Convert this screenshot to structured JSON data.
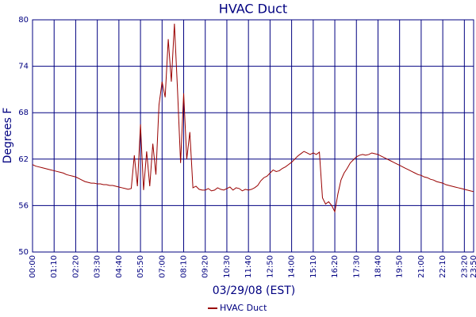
{
  "chart_data": {
    "type": "line",
    "title": "HVAC Duct",
    "xlabel": "03/29/08 (EST)",
    "ylabel": "Degrees F",
    "categories": [
      "00:00",
      null,
      null,
      null,
      null,
      null,
      null,
      "01:10",
      null,
      null,
      null,
      null,
      null,
      null,
      "02:20",
      null,
      null,
      null,
      null,
      null,
      null,
      "03:30",
      null,
      null,
      null,
      null,
      null,
      null,
      "04:40",
      null,
      null,
      null,
      null,
      null,
      null,
      "05:50",
      null,
      null,
      null,
      null,
      null,
      null,
      "07:00",
      null,
      null,
      null,
      null,
      null,
      null,
      "08:10",
      null,
      null,
      null,
      null,
      null,
      null,
      "09:20",
      null,
      null,
      null,
      null,
      null,
      null,
      "10:30",
      null,
      null,
      null,
      null,
      null,
      null,
      "11:40",
      null,
      null,
      null,
      null,
      null,
      null,
      "12:50",
      null,
      null,
      null,
      null,
      null,
      null,
      "14:00",
      null,
      null,
      null,
      null,
      null,
      null,
      "15:10",
      null,
      null,
      null,
      null,
      null,
      null,
      "16:20",
      null,
      null,
      null,
      null,
      null,
      null,
      "17:30",
      null,
      null,
      null,
      null,
      null,
      null,
      "18:40",
      null,
      null,
      null,
      null,
      null,
      null,
      "19:50",
      null,
      null,
      null,
      null,
      null,
      null,
      "21:00",
      null,
      null,
      null,
      null,
      null,
      null,
      "22:10",
      null,
      null,
      null,
      null,
      null,
      null,
      "23:20",
      null,
      null,
      "23:50"
    ],
    "series": [
      {
        "name": "HVAC Duct",
        "color": "#990000",
        "values": [
          61.3,
          61.1,
          61.0,
          60.9,
          60.8,
          60.7,
          60.6,
          60.5,
          60.4,
          60.3,
          60.2,
          60.0,
          59.9,
          59.8,
          59.7,
          59.5,
          59.3,
          59.1,
          59.0,
          58.9,
          58.9,
          58.8,
          58.8,
          58.7,
          58.7,
          58.6,
          58.6,
          58.5,
          58.4,
          58.3,
          58.2,
          58.1,
          58.2,
          62.5,
          58.5,
          66.5,
          58.0,
          63.0,
          58.5,
          64.0,
          60.0,
          69.0,
          72.0,
          70.0,
          77.5,
          72.0,
          79.5,
          71.0,
          61.5,
          70.5,
          62.0,
          65.5,
          58.3,
          58.5,
          58.1,
          58.0,
          58.0,
          58.2,
          57.9,
          58.0,
          58.3,
          58.1,
          58.0,
          58.2,
          58.4,
          58.0,
          58.3,
          58.2,
          57.9,
          58.1,
          58.0,
          58.1,
          58.3,
          58.6,
          59.2,
          59.6,
          59.8,
          60.2,
          60.6,
          60.4,
          60.5,
          60.8,
          61.0,
          61.3,
          61.6,
          62.0,
          62.4,
          62.7,
          63.0,
          62.8,
          62.6,
          62.8,
          62.6,
          62.9,
          57.0,
          56.2,
          56.5,
          56.0,
          55.2,
          57.5,
          59.3,
          60.2,
          60.8,
          61.5,
          61.9,
          62.3,
          62.5,
          62.6,
          62.5,
          62.6,
          62.8,
          62.7,
          62.6,
          62.4,
          62.2,
          62.0,
          61.8,
          61.6,
          61.4,
          61.2,
          61.0,
          60.8,
          60.6,
          60.4,
          60.2,
          60.0,
          59.9,
          59.7,
          59.6,
          59.4,
          59.3,
          59.1,
          59.0,
          58.9,
          58.7,
          58.6,
          58.5,
          58.4,
          58.3,
          58.2,
          58.1,
          58.0,
          57.9,
          57.8
        ]
      }
    ],
    "ylim": [
      50,
      80
    ],
    "yticks": [
      50,
      56,
      62,
      68,
      74,
      80
    ],
    "grid": true,
    "legend": "bottom"
  }
}
